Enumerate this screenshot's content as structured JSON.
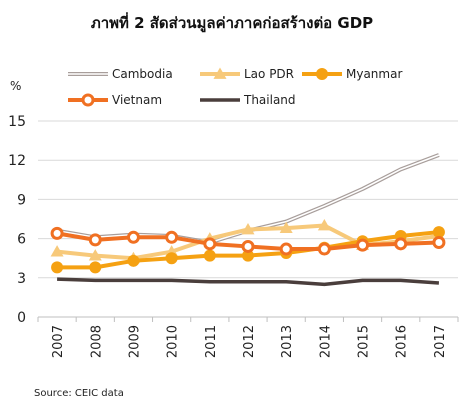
{
  "chart_data": {
    "type": "line",
    "title": "ภาพที่ 2 สัดส่วนมูลค่าภาคก่อสร้างต่อ GDP",
    "ylabel": "%",
    "ylim": [
      0,
      15
    ],
    "yticks": [
      0,
      3,
      6,
      9,
      12,
      15
    ],
    "x": [
      "2007",
      "2008",
      "2009",
      "2010",
      "2011",
      "2012",
      "2013",
      "2014",
      "2015",
      "2016",
      "2017"
    ],
    "grid": true,
    "legend": "top",
    "source": "Source: CEIC data",
    "series": [
      {
        "name": "Cambodia",
        "color": "#a89e9b",
        "style": "double-line",
        "marker": "none",
        "values": [
          6.6,
          6.1,
          6.3,
          6.2,
          5.7,
          6.6,
          7.3,
          8.5,
          9.8,
          11.3,
          12.4
        ]
      },
      {
        "name": "Lao PDR",
        "color": "#f7c97a",
        "style": "solid",
        "marker": "triangle",
        "values": [
          5.0,
          4.7,
          4.5,
          5.0,
          6.0,
          6.7,
          6.8,
          7.0,
          5.5,
          5.8,
          6.2
        ]
      },
      {
        "name": "Myanmar",
        "color": "#f5a112",
        "style": "solid",
        "marker": "circle",
        "values": [
          3.8,
          3.8,
          4.3,
          4.5,
          4.7,
          4.7,
          4.9,
          5.3,
          5.8,
          6.2,
          6.5
        ]
      },
      {
        "name": "Vietnam",
        "color": "#f07022",
        "style": "solid",
        "marker": "ring",
        "values": [
          6.4,
          5.9,
          6.1,
          6.1,
          5.6,
          5.4,
          5.2,
          5.2,
          5.5,
          5.6,
          5.7
        ]
      },
      {
        "name": "Thailand",
        "color": "#4a3e3c",
        "style": "solid",
        "marker": "none",
        "values": [
          2.9,
          2.8,
          2.8,
          2.8,
          2.7,
          2.7,
          2.7,
          2.5,
          2.8,
          2.8,
          2.6
        ]
      }
    ]
  }
}
